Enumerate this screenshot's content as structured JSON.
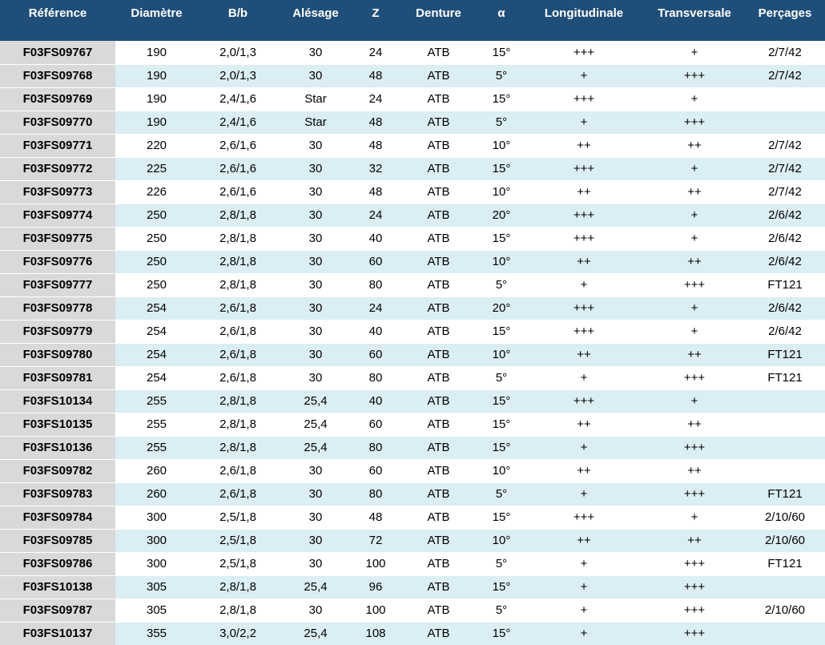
{
  "table": {
    "headers": [
      "Référence",
      "Diamètre",
      "B/b",
      "Alésage",
      "Z",
      "Denture",
      "α",
      "Longitudinale",
      "Transversale",
      "Perçages"
    ],
    "rows": [
      [
        "F03FS09767",
        "190",
        "2,0/1,3",
        "30",
        "24",
        "ATB",
        "15°",
        "+++",
        "+",
        "2/7/42"
      ],
      [
        "F03FS09768",
        "190",
        "2,0/1,3",
        "30",
        "48",
        "ATB",
        "5°",
        "+",
        "+++",
        "2/7/42"
      ],
      [
        "F03FS09769",
        "190",
        "2,4/1,6",
        "Star",
        "24",
        "ATB",
        "15°",
        "+++",
        "+",
        ""
      ],
      [
        "F03FS09770",
        "190",
        "2,4/1,6",
        "Star",
        "48",
        "ATB",
        "5°",
        "+",
        "+++",
        ""
      ],
      [
        "F03FS09771",
        "220",
        "2,6/1,6",
        "30",
        "48",
        "ATB",
        "10°",
        "++",
        "++",
        "2/7/42"
      ],
      [
        "F03FS09772",
        "225",
        "2,6/1,6",
        "30",
        "32",
        "ATB",
        "15°",
        "+++",
        "+",
        "2/7/42"
      ],
      [
        "F03FS09773",
        "226",
        "2,6/1,6",
        "30",
        "48",
        "ATB",
        "10°",
        "++",
        "++",
        "2/7/42"
      ],
      [
        "F03FS09774",
        "250",
        "2,8/1,8",
        "30",
        "24",
        "ATB",
        "20°",
        "+++",
        "+",
        "2/6/42"
      ],
      [
        "F03FS09775",
        "250",
        "2,8/1,8",
        "30",
        "40",
        "ATB",
        "15°",
        "+++",
        "+",
        "2/6/42"
      ],
      [
        "F03FS09776",
        "250",
        "2,8/1,8",
        "30",
        "60",
        "ATB",
        "10°",
        "++",
        "++",
        "2/6/42"
      ],
      [
        "F03FS09777",
        "250",
        "2,8/1,8",
        "30",
        "80",
        "ATB",
        "5°",
        "+",
        "+++",
        "FT121"
      ],
      [
        "F03FS09778",
        "254",
        "2,6/1,8",
        "30",
        "24",
        "ATB",
        "20°",
        "+++",
        "+",
        "2/6/42"
      ],
      [
        "F03FS09779",
        "254",
        "2,6/1,8",
        "30",
        "40",
        "ATB",
        "15°",
        "+++",
        "+",
        "2/6/42"
      ],
      [
        "F03FS09780",
        "254",
        "2,6/1,8",
        "30",
        "60",
        "ATB",
        "10°",
        "++",
        "++",
        "FT121"
      ],
      [
        "F03FS09781",
        "254",
        "2,6/1,8",
        "30",
        "80",
        "ATB",
        "5°",
        "+",
        "+++",
        "FT121"
      ],
      [
        "F03FS10134",
        "255",
        "2,8/1,8",
        "25,4",
        "40",
        "ATB",
        "15°",
        "+++",
        "+",
        ""
      ],
      [
        "F03FS10135",
        "255",
        "2,8/1,8",
        "25,4",
        "60",
        "ATB",
        "15°",
        "++",
        "++",
        ""
      ],
      [
        "F03FS10136",
        "255",
        "2,8/1,8",
        "25,4",
        "80",
        "ATB",
        "15°",
        "+",
        "+++",
        ""
      ],
      [
        "F03FS09782",
        "260",
        "2,6/1,8",
        "30",
        "60",
        "ATB",
        "10°",
        "++",
        "++",
        ""
      ],
      [
        "F03FS09783",
        "260",
        "2,6/1,8",
        "30",
        "80",
        "ATB",
        "5°",
        "+",
        "+++",
        "FT121"
      ],
      [
        "F03FS09784",
        "300",
        "2,5/1,8",
        "30",
        "48",
        "ATB",
        "15°",
        "+++",
        "+",
        "2/10/60"
      ],
      [
        "F03FS09785",
        "300",
        "2,5/1,8",
        "30",
        "72",
        "ATB",
        "10°",
        "++",
        "++",
        "2/10/60"
      ],
      [
        "F03FS09786",
        "300",
        "2,5/1,8",
        "30",
        "100",
        "ATB",
        "5°",
        "+",
        "+++",
        "FT121"
      ],
      [
        "F03FS10138",
        "305",
        "2,8/1,8",
        "25,4",
        "96",
        "ATB",
        "15°",
        "+",
        "+++",
        ""
      ],
      [
        "F03FS09787",
        "305",
        "2,8/1,8",
        "30",
        "100",
        "ATB",
        "5°",
        "+",
        "+++",
        "2/10/60"
      ],
      [
        "F03FS10137",
        "355",
        "3,0/2,2",
        "25,4",
        "108",
        "ATB",
        "15°",
        "+",
        "+++",
        ""
      ]
    ]
  },
  "colors": {
    "header_bg": "#1f4e79",
    "header_text": "#ffffff",
    "reference_col_bg": "#d9d9d9",
    "row_alt_bg": "#daeef3",
    "row_bg": "#ffffff"
  }
}
